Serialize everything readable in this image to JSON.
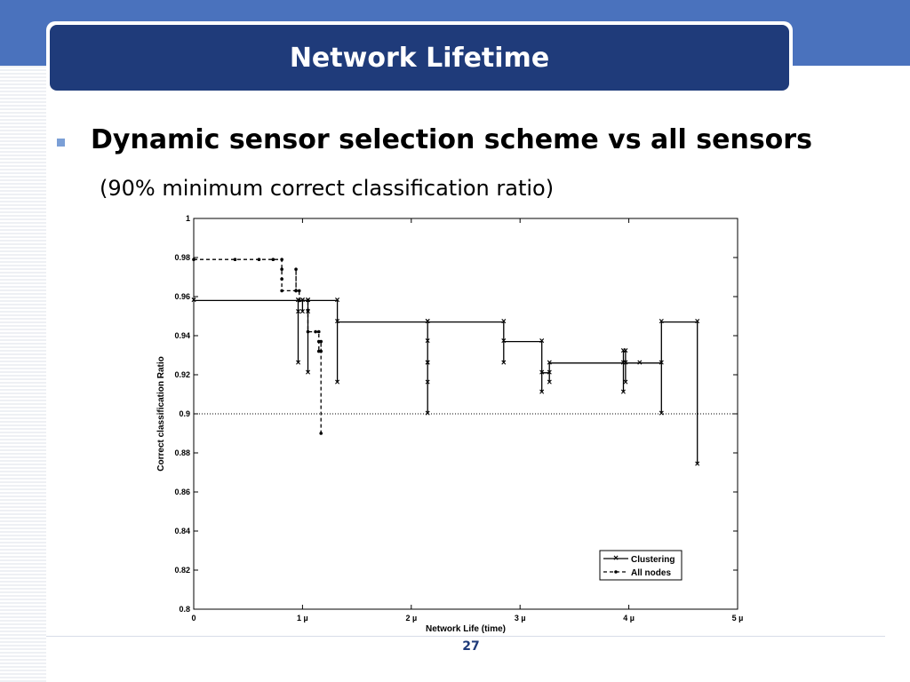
{
  "slide": {
    "title": "Network Lifetime",
    "heading": "Dynamic sensor selection scheme vs all sensors",
    "subheading": "(90% minimum correct classification ratio)",
    "page_number": "27"
  },
  "colors": {
    "band": "#4a72bd",
    "title_bg": "#1f3b7a",
    "bullet": "#7b9fd6",
    "page_number": "#1f3b7a"
  },
  "chart_data": {
    "type": "line",
    "title": "",
    "xlabel": "Network Life (time)",
    "ylabel": "Correct classification Ratio",
    "xlim": [
      0,
      5
    ],
    "ylim": [
      0.8,
      1.0
    ],
    "xticks": [
      0,
      1,
      2,
      3,
      4,
      5
    ],
    "xtick_labels": [
      "0",
      "1 µ",
      "2 µ",
      "3 µ",
      "4 µ",
      "5 µ"
    ],
    "yticks": [
      0.8,
      0.82,
      0.84,
      0.86,
      0.88,
      0.9,
      0.92,
      0.94,
      0.96,
      0.98,
      1.0
    ],
    "ytick_labels": [
      "0.8",
      "0.82",
      "0.84",
      "0.86",
      "0.88",
      "0.9",
      "0.92",
      "0.94",
      "0.96",
      "0.98",
      "1"
    ],
    "threshold": 0.9,
    "grid": false,
    "legend_position": "bottom-right",
    "series": [
      {
        "name": "Clustering",
        "style": "solid",
        "marker": "x",
        "points": [
          [
            0,
            0.958
          ],
          [
            0.96,
            0.958
          ],
          [
            0.96,
            0.926
          ],
          [
            0.96,
            0.952
          ],
          [
            0.96,
            0.958
          ],
          [
            1.0,
            0.958
          ],
          [
            1.0,
            0.952
          ],
          [
            1.0,
            0.958
          ],
          [
            1.05,
            0.958
          ],
          [
            1.05,
            0.921
          ],
          [
            1.05,
            0.952
          ],
          [
            1.05,
            0.958
          ],
          [
            1.32,
            0.958
          ],
          [
            1.32,
            0.916
          ],
          [
            1.32,
            0.947
          ],
          [
            2.15,
            0.947
          ],
          [
            2.15,
            0.937
          ],
          [
            2.15,
            0.926
          ],
          [
            2.15,
            0.916
          ],
          [
            2.15,
            0.9
          ],
          [
            2.15,
            0.926
          ],
          [
            2.15,
            0.947
          ],
          [
            2.85,
            0.947
          ],
          [
            2.85,
            0.926
          ],
          [
            2.85,
            0.937
          ],
          [
            3.2,
            0.937
          ],
          [
            3.2,
            0.911
          ],
          [
            3.2,
            0.921
          ],
          [
            3.27,
            0.921
          ],
          [
            3.27,
            0.916
          ],
          [
            3.27,
            0.926
          ],
          [
            3.95,
            0.926
          ],
          [
            3.95,
            0.911
          ],
          [
            3.95,
            0.932
          ],
          [
            3.97,
            0.932
          ],
          [
            3.97,
            0.916
          ],
          [
            3.97,
            0.926
          ],
          [
            4.1,
            0.926
          ],
          [
            4.3,
            0.926
          ],
          [
            4.3,
            0.9
          ],
          [
            4.3,
            0.947
          ],
          [
            4.63,
            0.947
          ],
          [
            4.63,
            0.874
          ]
        ]
      },
      {
        "name": "All nodes",
        "style": "dashed",
        "marker": "dot",
        "points": [
          [
            0,
            0.979
          ],
          [
            0.38,
            0.979
          ],
          [
            0.6,
            0.979
          ],
          [
            0.73,
            0.979
          ],
          [
            0.81,
            0.979
          ],
          [
            0.81,
            0.974
          ],
          [
            0.81,
            0.969
          ],
          [
            0.81,
            0.963
          ],
          [
            0.94,
            0.963
          ],
          [
            0.94,
            0.974
          ],
          [
            0.94,
            0.963
          ],
          [
            0.97,
            0.963
          ],
          [
            0.97,
            0.958
          ],
          [
            1.05,
            0.958
          ],
          [
            1.05,
            0.953
          ],
          [
            1.05,
            0.942
          ],
          [
            1.12,
            0.942
          ],
          [
            1.15,
            0.942
          ],
          [
            1.15,
            0.937
          ],
          [
            1.15,
            0.932
          ],
          [
            1.17,
            0.932
          ],
          [
            1.17,
            0.937
          ],
          [
            1.17,
            0.89
          ]
        ]
      }
    ]
  }
}
